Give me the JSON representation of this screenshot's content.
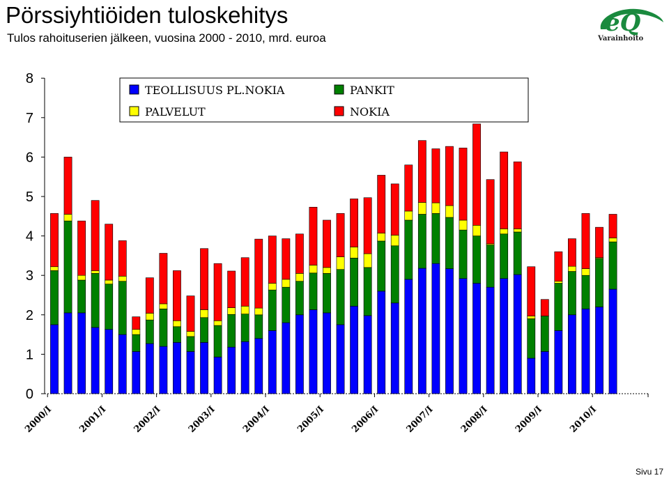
{
  "header": {
    "title": "Pörssiyhtiöiden tuloskehitys",
    "subtitle": "Tulos rahoituserien jälkeen, vuosina 2000 - 2010, mrd. euroa"
  },
  "logo": {
    "mark": "eQ",
    "text": "Varainhoito",
    "color": "#1a8a3e"
  },
  "footer": {
    "page": "Sivu 17"
  },
  "chart_data": {
    "type": "bar",
    "stacked": true,
    "title": "",
    "xlabel": "",
    "ylabel": "",
    "ylim": [
      0,
      8
    ],
    "yticks": [
      0,
      1,
      2,
      3,
      4,
      5,
      6,
      7,
      8
    ],
    "grid": false,
    "legend_position": "top-center",
    "categories": [
      "2000/I",
      "2000/II",
      "2000/III",
      "2000/IV",
      "2001/I",
      "2001/II",
      "2001/III",
      "2001/IV",
      "2002/I",
      "2002/II",
      "2002/III",
      "2002/IV",
      "2003/I",
      "2003/II",
      "2003/III",
      "2003/IV",
      "2004/I",
      "2004/II",
      "2004/III",
      "2004/IV",
      "2005/I",
      "2005/II",
      "2005/III",
      "2005/IV",
      "2006/I",
      "2006/II",
      "2006/III",
      "2006/IV",
      "2007/I",
      "2007/II",
      "2007/III",
      "2007/IV",
      "2008/I",
      "2008/II",
      "2008/III",
      "2008/IV",
      "2009/I",
      "2009/II",
      "2009/III",
      "2009/IV",
      "2010/I",
      "2010/II",
      "2010/III"
    ],
    "x_tick_labels": [
      "2000/I",
      "2001/I",
      "2002/I",
      "2003/I",
      "2004/I",
      "2005/I",
      "2006/I",
      "2007/I",
      "2008/I",
      "2009/I",
      "2010/I"
    ],
    "series": [
      {
        "name": "TEOLLISUUS PL.NOKIA",
        "color": "#0000ff",
        "values": [
          1.75,
          2.05,
          2.05,
          1.68,
          1.63,
          1.5,
          1.07,
          1.27,
          1.2,
          1.3,
          1.07,
          1.3,
          0.93,
          1.18,
          1.32,
          1.4,
          1.6,
          1.8,
          2.0,
          2.13,
          2.05,
          1.75,
          2.22,
          1.98,
          2.6,
          2.3,
          2.9,
          3.18,
          3.3,
          3.17,
          2.92,
          2.8,
          2.7,
          2.92,
          3.02,
          0.9,
          1.07,
          1.6,
          2.0,
          2.15,
          2.2,
          2.65,
          0
        ]
      },
      {
        "name": "PANKIT",
        "color": "#008000",
        "values": [
          1.37,
          2.33,
          0.83,
          1.37,
          1.15,
          1.35,
          0.43,
          0.6,
          0.95,
          0.4,
          0.38,
          0.63,
          0.8,
          0.83,
          0.7,
          0.6,
          1.03,
          0.9,
          0.85,
          0.93,
          1.0,
          1.4,
          1.22,
          1.22,
          1.27,
          1.45,
          1.5,
          1.37,
          1.27,
          1.3,
          1.23,
          1.2,
          1.07,
          1.13,
          1.08,
          1.0,
          0.9,
          1.2,
          1.1,
          0.85,
          1.23,
          1.2,
          0
        ]
      },
      {
        "name": "PALVELUT",
        "color": "#ffff00",
        "values": [
          0.1,
          0.17,
          0.12,
          0.07,
          0.1,
          0.13,
          0.13,
          0.17,
          0.13,
          0.15,
          0.13,
          0.2,
          0.12,
          0.17,
          0.2,
          0.17,
          0.17,
          0.2,
          0.2,
          0.2,
          0.15,
          0.32,
          0.28,
          0.35,
          0.2,
          0.27,
          0.23,
          0.3,
          0.27,
          0.3,
          0.25,
          0.27,
          0.03,
          0.13,
          0.08,
          0.07,
          0.0,
          0.05,
          0.13,
          0.17,
          0.02,
          0.1,
          0
        ]
      },
      {
        "name": "NOKIA",
        "color": "#ff0000",
        "values": [
          1.35,
          1.45,
          1.38,
          1.78,
          1.42,
          0.9,
          0.32,
          0.9,
          1.28,
          1.27,
          0.9,
          1.55,
          1.45,
          0.93,
          1.23,
          1.75,
          1.2,
          1.03,
          1.0,
          1.47,
          1.2,
          1.1,
          1.22,
          1.42,
          1.47,
          1.3,
          1.17,
          1.57,
          1.37,
          1.5,
          1.83,
          2.57,
          1.63,
          1.95,
          1.7,
          1.25,
          0.42,
          0.75,
          0.7,
          1.4,
          0.77,
          0.6,
          0
        ]
      }
    ]
  }
}
